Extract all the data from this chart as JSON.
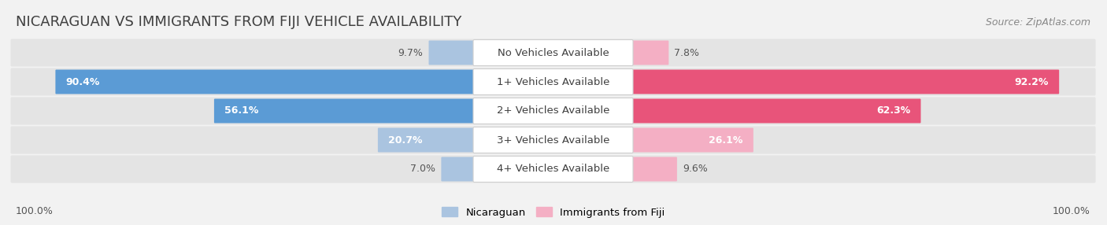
{
  "title": "NICARAGUAN VS IMMIGRANTS FROM FIJI VEHICLE AVAILABILITY",
  "source": "Source: ZipAtlas.com",
  "categories": [
    "No Vehicles Available",
    "1+ Vehicles Available",
    "2+ Vehicles Available",
    "3+ Vehicles Available",
    "4+ Vehicles Available"
  ],
  "nicaraguan": [
    9.7,
    90.4,
    56.1,
    20.7,
    7.0
  ],
  "fiji": [
    7.8,
    92.2,
    62.3,
    26.1,
    9.6
  ],
  "blue_light": "#aac4e0",
  "blue_dark": "#5b9bd5",
  "pink_light": "#f4afc4",
  "pink_dark": "#e8547a",
  "bg_color": "#f2f2f2",
  "row_bg_light": "#e8e8e8",
  "row_bg_dark": "#d8d8d8",
  "label_bg": "#ffffff",
  "axis_label_left": "100.0%",
  "axis_label_right": "100.0%",
  "legend_nicaraguan": "Nicaraguan",
  "legend_fiji": "Immigrants from Fiji",
  "title_fontsize": 13,
  "source_fontsize": 9,
  "bar_label_fontsize": 9,
  "category_fontsize": 9.5
}
